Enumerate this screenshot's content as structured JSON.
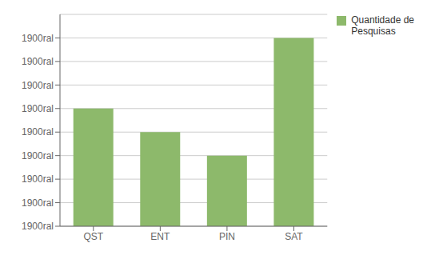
{
  "chart_data": {
    "type": "bar",
    "categories": [
      "QST",
      "ENT",
      "PIN",
      "SAT"
    ],
    "series": [
      {
        "name": "Quantidade de\nPesquisas",
        "color": "#8DB96B",
        "values": [
          5,
          4,
          3,
          8
        ]
      }
    ],
    "ylim": [
      0,
      9
    ],
    "yticks": [
      {
        "value": 0,
        "label": "1900ral"
      },
      {
        "value": 1,
        "label": "1900ral"
      },
      {
        "value": 2,
        "label": "1900ral"
      },
      {
        "value": 3,
        "label": "1900ral"
      },
      {
        "value": 4,
        "label": "1900ral"
      },
      {
        "value": 5,
        "label": "1900ral"
      },
      {
        "value": 6,
        "label": "1900ral"
      },
      {
        "value": 7,
        "label": "1900ral"
      },
      {
        "value": 8,
        "label": "1900ral"
      }
    ],
    "grid": true,
    "legend": "upper right"
  }
}
